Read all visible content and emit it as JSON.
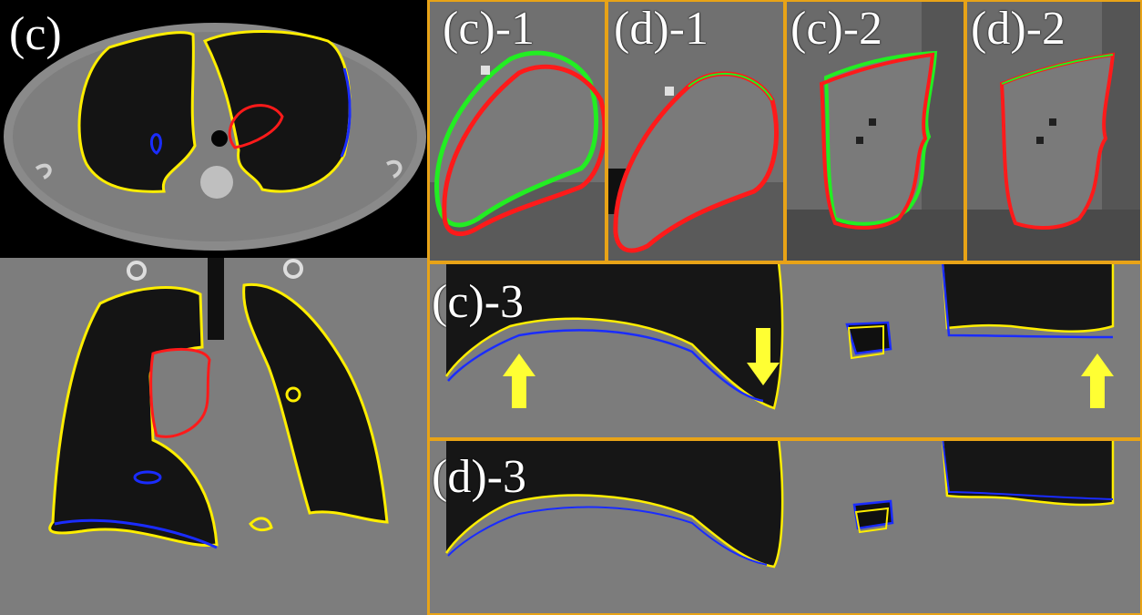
{
  "figure": {
    "main_label": "(c)",
    "zoom_labels": {
      "c1": "(c)-1",
      "d1": "(d)-1",
      "c2": "(c)-2",
      "d2": "(d)-2",
      "c3": "(c)-3",
      "d3": "(d)-3"
    }
  },
  "colors": {
    "frame": "#e8a317",
    "contour_yellow": "#ffee00",
    "contour_blue": "#1a2cff",
    "contour_red": "#ff1a1a",
    "contour_green": "#22ee22",
    "arrow": "#ffff33"
  }
}
